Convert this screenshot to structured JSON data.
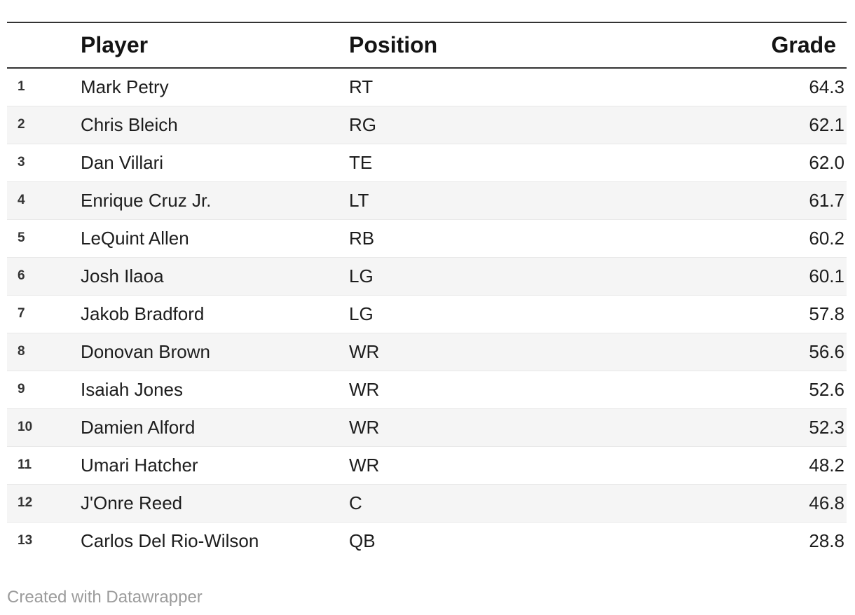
{
  "chart_data": {
    "type": "table",
    "columns": [
      "",
      "Player",
      "Position",
      "Grade"
    ],
    "column_alignments": [
      "left",
      "left",
      "left",
      "right"
    ],
    "rows": [
      [
        "1",
        "Mark Petry",
        "RT",
        "64.3"
      ],
      [
        "2",
        "Chris Bleich",
        "RG",
        "62.1"
      ],
      [
        "3",
        "Dan Villari",
        "TE",
        "62.0"
      ],
      [
        "4",
        "Enrique Cruz Jr.",
        "LT",
        "61.7"
      ],
      [
        "5",
        "LeQuint Allen",
        "RB",
        "60.2"
      ],
      [
        "6",
        "Josh Ilaoa",
        "LG",
        "60.1"
      ],
      [
        "7",
        "Jakob Bradford",
        "LG",
        "57.8"
      ],
      [
        "8",
        "Donovan Brown",
        "WR",
        "56.6"
      ],
      [
        "9",
        "Isaiah Jones",
        "WR",
        "52.6"
      ],
      [
        "10",
        "Damien Alford",
        "WR",
        "52.3"
      ],
      [
        "11",
        "Umari Hatcher",
        "WR",
        "48.2"
      ],
      [
        "12",
        "J'Onre Reed",
        "C",
        "46.8"
      ],
      [
        "13",
        "Carlos Del Rio-Wilson",
        "QB",
        "28.8"
      ]
    ],
    "zebra_striping": true,
    "striped_row_parity": "even-numbered rows"
  },
  "footer": {
    "attribution": "Created with Datawrapper"
  },
  "colors": {
    "header_rule": "#333333",
    "row_separator": "#e8e8e8",
    "stripe_background": "#f5f5f5",
    "header_text": "#141414",
    "body_text": "#1d1d1d",
    "row_number_text": "#333333",
    "footer_text": "#9b9b9b",
    "background": "#ffffff"
  }
}
